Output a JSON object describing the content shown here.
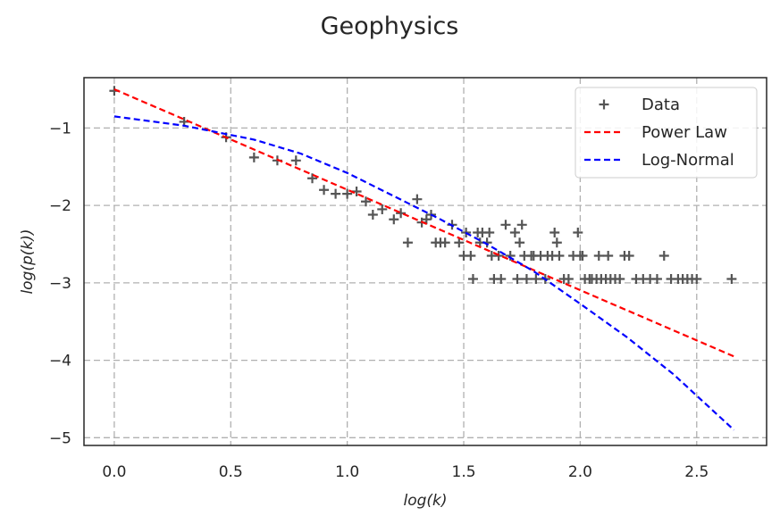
{
  "chart_data": {
    "type": "scatter",
    "title": "Geophysics",
    "xlabel": "log(k)",
    "ylabel": "log(p(k))",
    "xlim": [
      -0.13,
      2.8
    ],
    "ylim": [
      -5.1,
      -0.35
    ],
    "xticks": [
      0.0,
      0.5,
      1.0,
      1.5,
      2.0,
      2.5
    ],
    "xtick_labels": [
      "0.0",
      "0.5",
      "1.0",
      "1.5",
      "2.0",
      "2.5"
    ],
    "yticks": [
      -1,
      -2,
      -3,
      -4,
      -5
    ],
    "ytick_labels": [
      "−1",
      "−2",
      "−3",
      "−4",
      "−5"
    ],
    "grid": true,
    "legend_position": "top-right",
    "series": [
      {
        "name": "Data",
        "kind": "scatter",
        "marker": "+",
        "color": "#555555",
        "points": [
          [
            0.0,
            -0.52
          ],
          [
            0.3,
            -0.92
          ],
          [
            0.48,
            -1.12
          ],
          [
            0.6,
            -1.38
          ],
          [
            0.7,
            -1.42
          ],
          [
            0.78,
            -1.42
          ],
          [
            0.85,
            -1.65
          ],
          [
            0.9,
            -1.8
          ],
          [
            0.95,
            -1.85
          ],
          [
            1.0,
            -1.85
          ],
          [
            1.04,
            -1.82
          ],
          [
            1.08,
            -1.95
          ],
          [
            1.11,
            -2.12
          ],
          [
            1.15,
            -2.05
          ],
          [
            1.2,
            -2.18
          ],
          [
            1.23,
            -2.1
          ],
          [
            1.26,
            -2.48
          ],
          [
            1.3,
            -1.92
          ],
          [
            1.32,
            -2.22
          ],
          [
            1.34,
            -2.18
          ],
          [
            1.36,
            -2.12
          ],
          [
            1.38,
            -2.48
          ],
          [
            1.4,
            -2.48
          ],
          [
            1.42,
            -2.48
          ],
          [
            1.45,
            -2.25
          ],
          [
            1.48,
            -2.48
          ],
          [
            1.5,
            -2.65
          ],
          [
            1.51,
            -2.35
          ],
          [
            1.53,
            -2.65
          ],
          [
            1.54,
            -2.95
          ],
          [
            1.56,
            -2.35
          ],
          [
            1.57,
            -2.48
          ],
          [
            1.58,
            -2.35
          ],
          [
            1.6,
            -2.48
          ],
          [
            1.61,
            -2.35
          ],
          [
            1.62,
            -2.65
          ],
          [
            1.63,
            -2.95
          ],
          [
            1.65,
            -2.65
          ],
          [
            1.66,
            -2.95
          ],
          [
            1.68,
            -2.25
          ],
          [
            1.7,
            -2.65
          ],
          [
            1.72,
            -2.35
          ],
          [
            1.73,
            -2.95
          ],
          [
            1.74,
            -2.48
          ],
          [
            1.75,
            -2.25
          ],
          [
            1.76,
            -2.65
          ],
          [
            1.77,
            -2.95
          ],
          [
            1.79,
            -2.65
          ],
          [
            1.8,
            -2.65
          ],
          [
            1.81,
            -2.95
          ],
          [
            1.83,
            -2.65
          ],
          [
            1.85,
            -2.95
          ],
          [
            1.86,
            -2.65
          ],
          [
            1.88,
            -2.65
          ],
          [
            1.89,
            -2.35
          ],
          [
            1.9,
            -2.48
          ],
          [
            1.91,
            -2.65
          ],
          [
            1.93,
            -2.95
          ],
          [
            1.95,
            -2.95
          ],
          [
            1.97,
            -2.65
          ],
          [
            1.99,
            -2.35
          ],
          [
            2.0,
            -2.65
          ],
          [
            2.01,
            -2.65
          ],
          [
            2.02,
            -2.95
          ],
          [
            2.04,
            -2.95
          ],
          [
            2.05,
            -2.95
          ],
          [
            2.07,
            -2.95
          ],
          [
            2.08,
            -2.65
          ],
          [
            2.09,
            -2.95
          ],
          [
            2.11,
            -2.95
          ],
          [
            2.12,
            -2.65
          ],
          [
            2.13,
            -2.95
          ],
          [
            2.15,
            -2.95
          ],
          [
            2.17,
            -2.95
          ],
          [
            2.19,
            -2.65
          ],
          [
            2.21,
            -2.65
          ],
          [
            2.24,
            -2.95
          ],
          [
            2.27,
            -2.95
          ],
          [
            2.3,
            -2.95
          ],
          [
            2.33,
            -2.95
          ],
          [
            2.36,
            -2.65
          ],
          [
            2.39,
            -2.95
          ],
          [
            2.42,
            -2.95
          ],
          [
            2.44,
            -2.95
          ],
          [
            2.46,
            -2.95
          ],
          [
            2.48,
            -2.95
          ],
          [
            2.5,
            -2.95
          ],
          [
            2.65,
            -2.95
          ]
        ]
      },
      {
        "name": "Power Law",
        "kind": "line",
        "dash": true,
        "color": "#ff0000",
        "points": [
          [
            0.0,
            -0.5
          ],
          [
            2.66,
            -3.95
          ]
        ]
      },
      {
        "name": "Log-Normal",
        "kind": "line",
        "dash": true,
        "color": "#0000ff",
        "points": [
          [
            0.0,
            -0.85
          ],
          [
            0.3,
            -0.97
          ],
          [
            0.6,
            -1.15
          ],
          [
            0.8,
            -1.33
          ],
          [
            1.0,
            -1.58
          ],
          [
            1.2,
            -1.88
          ],
          [
            1.4,
            -2.18
          ],
          [
            1.6,
            -2.5
          ],
          [
            1.8,
            -2.85
          ],
          [
            2.0,
            -3.27
          ],
          [
            2.2,
            -3.7
          ],
          [
            2.4,
            -4.18
          ],
          [
            2.66,
            -4.9
          ]
        ]
      }
    ]
  }
}
